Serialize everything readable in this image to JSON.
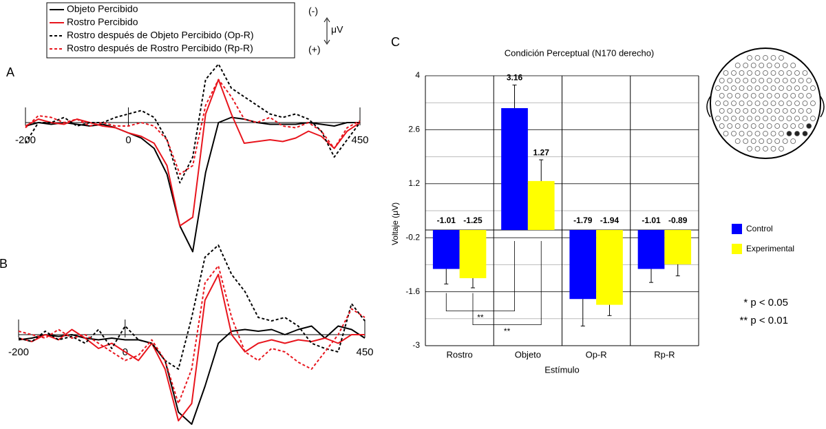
{
  "chart_data": [
    {
      "type": "line",
      "panel_label": "A",
      "polarity_labels": {
        "negative": "(-)",
        "unit": "μV",
        "positive": "(+)"
      },
      "x": [
        -200,
        -175,
        -150,
        -125,
        -100,
        -75,
        -50,
        -25,
        0,
        25,
        50,
        75,
        100,
        125,
        150,
        175,
        200,
        225,
        250,
        275,
        300,
        325,
        350,
        375,
        400,
        425,
        450
      ],
      "xlim": [
        -200,
        450
      ],
      "xticks": [
        -200,
        0,
        450
      ],
      "ylim": [
        8,
        -4
      ],
      "series": [
        {
          "name": "Objeto Percibido",
          "color": "#000000",
          "line_style": "solid",
          "values": [
            0.2,
            0,
            0.1,
            0,
            0.1,
            0.2,
            0.1,
            0.3,
            0.6,
            0.9,
            1.5,
            3,
            6,
            7.5,
            2.9,
            0,
            -0.3,
            -0.2,
            0,
            0.1,
            0.1,
            0.1,
            0,
            0.1,
            0.2,
            0,
            0
          ]
        },
        {
          "name": "Rostro Percibido",
          "color": "#e8141c",
          "line_style": "solid",
          "values": [
            0.2,
            -0.2,
            0,
            0.1,
            -0.2,
            0,
            0.2,
            0.3,
            0.6,
            0.8,
            1.2,
            2.5,
            6,
            5.5,
            -0.5,
            -2.5,
            -0.5,
            1.2,
            1.1,
            1,
            1.1,
            0.9,
            0.5,
            0.8,
            1.5,
            0.5,
            0
          ]
        },
        {
          "name": "Rostro después de Objeto Percibido (Op-R)",
          "color": "#000000",
          "line_style": "dashed",
          "values": [
            1.2,
            0,
            0,
            -0.3,
            0.2,
            0,
            0,
            -0.3,
            -0.5,
            -0.7,
            -0.3,
            1,
            3.5,
            2,
            -2.5,
            -3.4,
            -2,
            -1.5,
            -1,
            -0.5,
            -0.3,
            -0.5,
            -0.2,
            0.5,
            2,
            1,
            0
          ]
        },
        {
          "name": "Rostro después de Rostro Percibido (Rp-R)",
          "color": "#e8141c",
          "line_style": "dashed",
          "values": [
            0.3,
            -0.4,
            -0.3,
            0,
            -0.2,
            0.2,
            0,
            0.2,
            0.2,
            0,
            0.2,
            1,
            3,
            2.5,
            -1,
            -2.5,
            -1.5,
            -0.2,
            0,
            -0.3,
            0.2,
            0.3,
            0,
            0.5,
            1.5,
            0.3,
            -0.1
          ]
        }
      ]
    },
    {
      "type": "line",
      "panel_label": "B",
      "x": [
        -200,
        -175,
        -150,
        -125,
        -100,
        -75,
        -50,
        -25,
        0,
        25,
        50,
        75,
        100,
        125,
        150,
        175,
        200,
        225,
        250,
        275,
        300,
        325,
        350,
        375,
        400,
        425,
        450
      ],
      "xlim": [
        -200,
        450
      ],
      "xticks": [
        -200,
        0,
        450
      ],
      "ylim": [
        5.4,
        -5.2
      ],
      "series": [
        {
          "color": "#000000",
          "line_style": "solid",
          "values": [
            0.3,
            0.2,
            0,
            0.1,
            0,
            0.2,
            0.3,
            0.2,
            0.3,
            0.3,
            0.5,
            1.5,
            4.5,
            5.2,
            3,
            0.5,
            -0.2,
            -0.3,
            -0.2,
            -0.3,
            0,
            -0.3,
            -0.5,
            0.2,
            -0.5,
            -0.3,
            0.2
          ]
        },
        {
          "color": "#e8141c",
          "line_style": "solid",
          "values": [
            0.2,
            0.4,
            0,
            0.3,
            -0.3,
            0.2,
            0.8,
            0.5,
            1,
            1.5,
            0.5,
            2,
            5,
            4,
            -2,
            -3.5,
            0,
            1,
            0.5,
            0.3,
            0.5,
            0.3,
            0.4,
            0.2,
            0.5,
            0,
            0
          ]
        },
        {
          "color": "#000000",
          "line_style": "dashed",
          "values": [
            0.2,
            0.4,
            -0.2,
            0.3,
            0.1,
            0.5,
            -0.3,
            0.8,
            -0.5,
            0.3,
            0.5,
            1.5,
            2,
            -1,
            -4.5,
            -5.2,
            -3.5,
            -2.5,
            -1,
            -0.8,
            -1,
            -0.5,
            0.5,
            0.8,
            1,
            -1.8,
            -0.8
          ]
        },
        {
          "color": "#e8141c",
          "line_style": "dashed",
          "values": [
            -0.2,
            0,
            0.2,
            -0.3,
            0.2,
            0,
            0.5,
            1,
            1.5,
            1.2,
            0.3,
            1.5,
            4,
            2,
            -3,
            -4,
            -1,
            1,
            1.5,
            0.8,
            1,
            1.6,
            2,
            1,
            0,
            -1.5,
            -1
          ]
        }
      ]
    },
    {
      "type": "bar",
      "panel_label": "C",
      "title": "Condición Perceptual (N170 derecho)",
      "x_label": "Estímulo",
      "y_label": "Voltaje (μV)",
      "categories": [
        "Rostro",
        "Objeto",
        "Op-R",
        "Rp-R"
      ],
      "ylim": [
        -3,
        4
      ],
      "yticks": [
        -3,
        -1.6,
        -0.2,
        1.2,
        2.6,
        4
      ],
      "grid": true,
      "series": [
        {
          "name": "Control",
          "color": "#0000ff",
          "values": [
            -1.01,
            3.16,
            -1.79,
            -1.01
          ],
          "errors": [
            0.39,
            0.6,
            0.7,
            0.35
          ]
        },
        {
          "name": "Experimental",
          "color": "#ffff00",
          "values": [
            -1.25,
            1.27,
            -1.94,
            -0.89
          ],
          "errors": [
            0.25,
            0.55,
            0.28,
            0.3
          ]
        }
      ],
      "significance_labels": [
        "**",
        "**"
      ],
      "notes": [
        "* p < 0.05",
        "** p < 0.01"
      ]
    }
  ]
}
